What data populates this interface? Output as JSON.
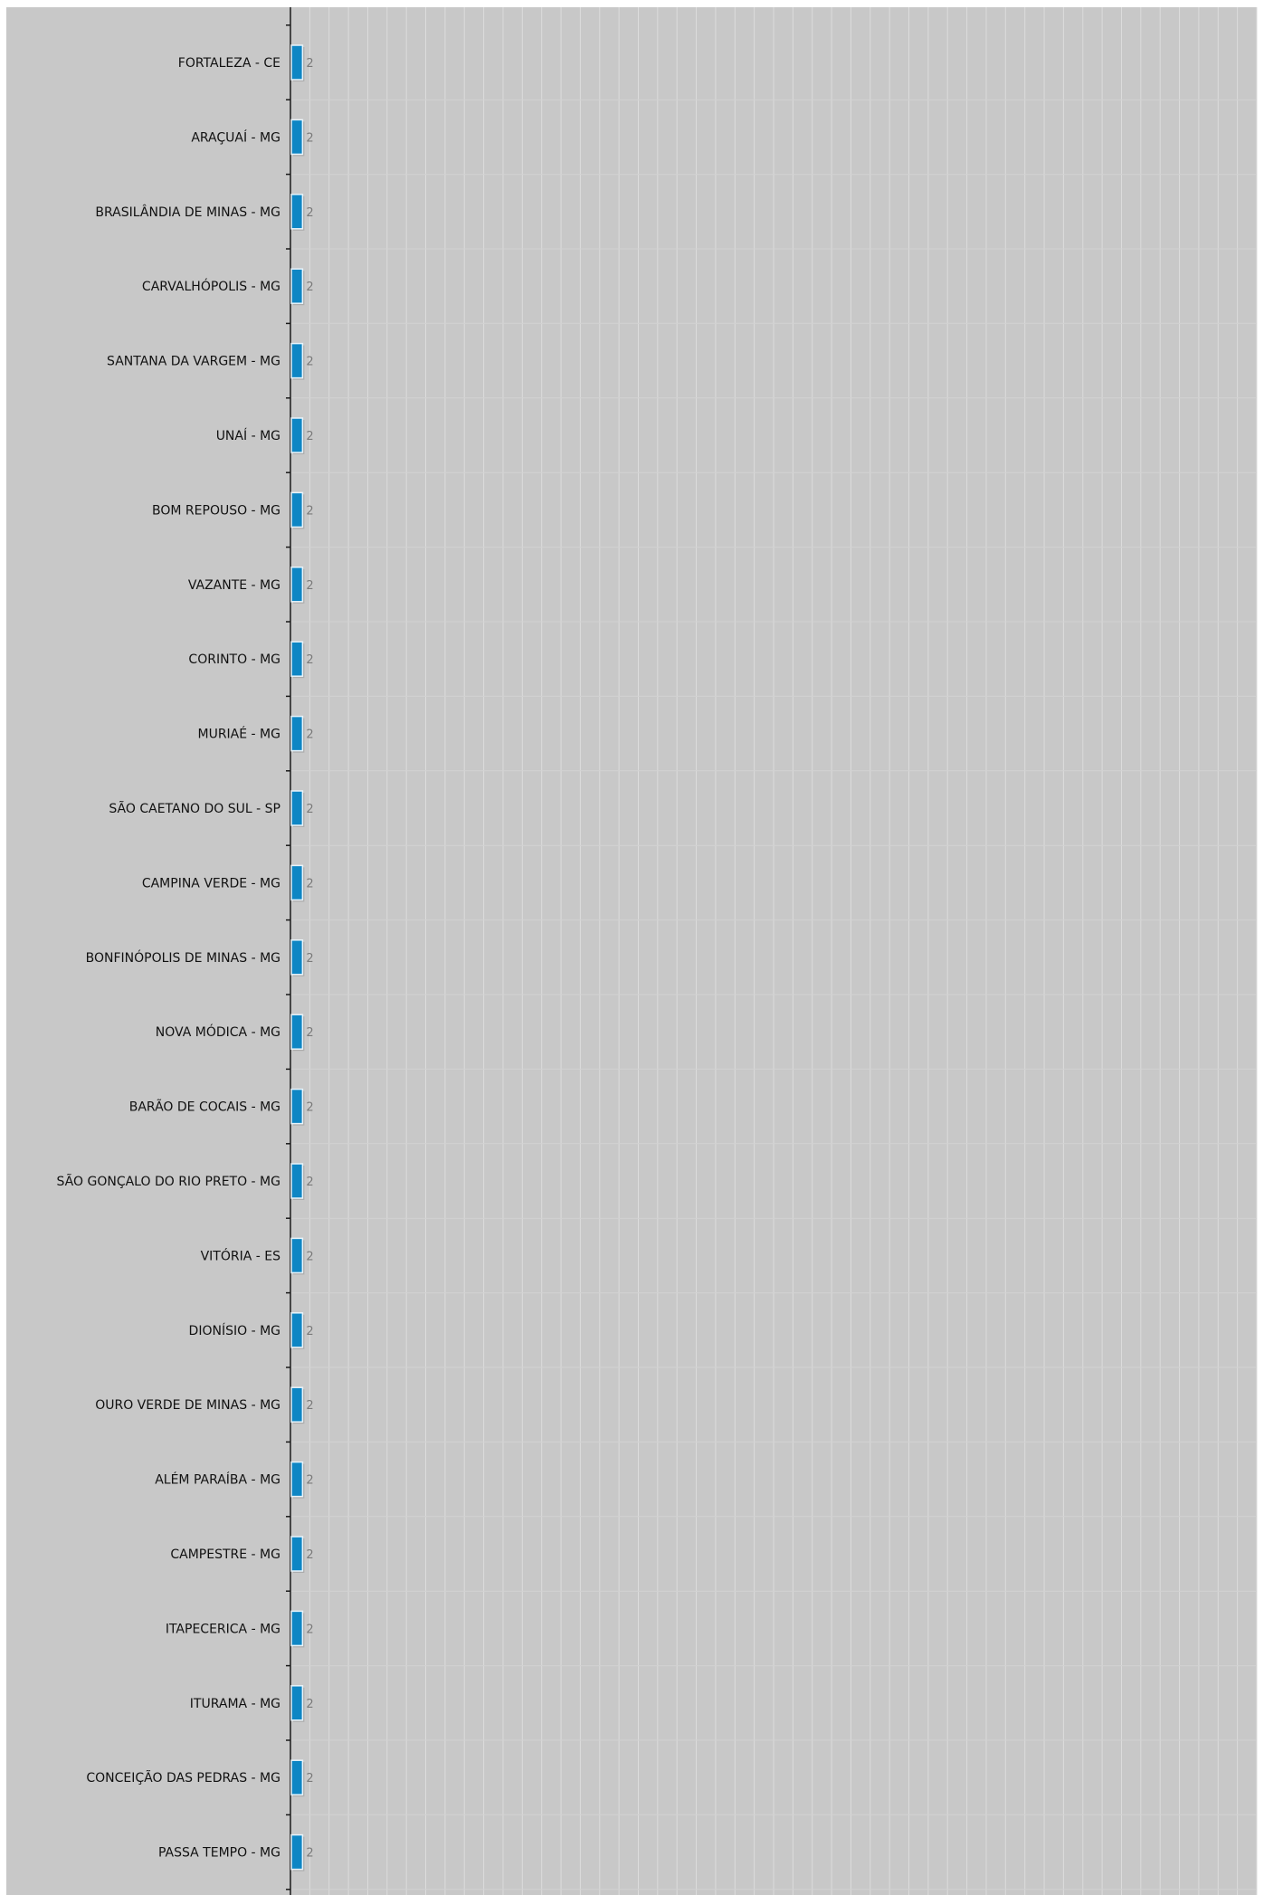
{
  "chart_data": {
    "type": "bar",
    "orientation": "horizontal",
    "categories": [
      "FORTALEZA - CE",
      "ARAÇUAÍ - MG",
      "BRASILÂNDIA DE MINAS - MG",
      "CARVALHÓPOLIS - MG",
      "SANTANA DA VARGEM - MG",
      "UNAÍ - MG",
      "BOM REPOUSO - MG",
      "VAZANTE - MG",
      "CORINTO - MG",
      "MURIAÉ - MG",
      "SÃO CAETANO DO SUL - SP",
      "CAMPINA VERDE - MG",
      "BONFINÓPOLIS DE MINAS - MG",
      "NOVA MÓDICA - MG",
      "BARÃO DE COCAIS - MG",
      "SÃO GONÇALO DO RIO PRETO - MG",
      "VITÓRIA - ES",
      "DIONÍSIO - MG",
      "OURO VERDE DE MINAS - MG",
      "ALÉM PARAÍBA - MG",
      "CAMPESTRE - MG",
      "ITAPECERICA - MG",
      "ITURAMA - MG",
      "CONCEIÇÃO DAS PEDRAS - MG",
      "PASSA TEMPO - MG"
    ],
    "values": [
      2,
      2,
      2,
      2,
      2,
      2,
      2,
      2,
      2,
      2,
      2,
      2,
      2,
      2,
      2,
      2,
      2,
      2,
      2,
      2,
      2,
      2,
      2,
      2,
      2
    ],
    "xlim": [
      0,
      100
    ],
    "grid": true,
    "colors": {
      "bar": "#0e86c4",
      "bar_edge": "#0a5f8e",
      "background": "#c8c8c8",
      "gridline": "#dcdcdc",
      "axis": "#1a1a1a",
      "value_label": "#7a7a7a",
      "category_label": "#111111"
    }
  }
}
